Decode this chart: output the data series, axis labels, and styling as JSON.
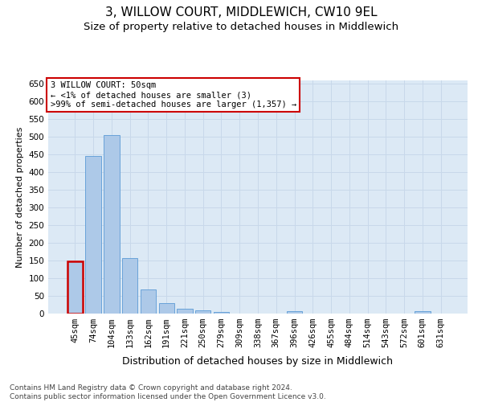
{
  "title": "3, WILLOW COURT, MIDDLEWICH, CW10 9EL",
  "subtitle": "Size of property relative to detached houses in Middlewich",
  "xlabel": "Distribution of detached houses by size in Middlewich",
  "ylabel": "Number of detached properties",
  "categories": [
    "45sqm",
    "74sqm",
    "104sqm",
    "133sqm",
    "162sqm",
    "191sqm",
    "221sqm",
    "250sqm",
    "279sqm",
    "309sqm",
    "338sqm",
    "367sqm",
    "396sqm",
    "426sqm",
    "455sqm",
    "484sqm",
    "514sqm",
    "543sqm",
    "572sqm",
    "601sqm",
    "631sqm"
  ],
  "values": [
    147,
    447,
    505,
    158,
    68,
    30,
    14,
    9,
    5,
    0,
    0,
    0,
    6,
    0,
    0,
    0,
    0,
    0,
    0,
    6,
    0
  ],
  "bar_color": "#adc9e8",
  "bar_edge_color": "#5b9bd5",
  "highlight_bar_index": 0,
  "highlight_color": "#cc0000",
  "annotation_text": "3 WILLOW COURT: 50sqm\n← <1% of detached houses are smaller (3)\n>99% of semi-detached houses are larger (1,357) →",
  "annotation_box_color": "#ffffff",
  "annotation_box_edge_color": "#cc0000",
  "ylim": [
    0,
    660
  ],
  "yticks": [
    0,
    50,
    100,
    150,
    200,
    250,
    300,
    350,
    400,
    450,
    500,
    550,
    600,
    650
  ],
  "grid_color": "#c8d8ea",
  "background_color": "#dce9f5",
  "footer_text": "Contains HM Land Registry data © Crown copyright and database right 2024.\nContains public sector information licensed under the Open Government Licence v3.0.",
  "title_fontsize": 11,
  "subtitle_fontsize": 9.5,
  "xlabel_fontsize": 9,
  "ylabel_fontsize": 8,
  "tick_fontsize": 7.5,
  "footer_fontsize": 6.5
}
